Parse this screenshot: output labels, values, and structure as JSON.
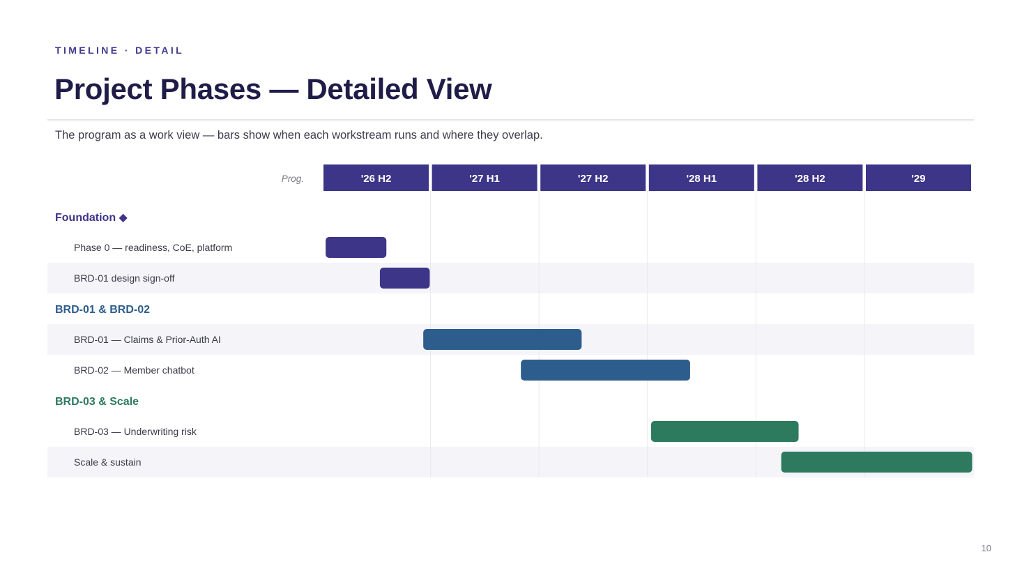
{
  "header": {
    "eyebrow": "TIMELINE · DETAIL",
    "title": "Project Phases — Detailed View",
    "subtitle": "The program as a work view — bars show when each workstream runs and where they overlap."
  },
  "page_number": "10",
  "chart_data": {
    "type": "gantt",
    "label_column_header": "Prog.",
    "periods": [
      "'26 H2",
      "'27 H1",
      "'27 H2",
      "'28 H1",
      "'28 H2",
      "'29"
    ],
    "colors": {
      "header_fill": "#3d3587",
      "foundation": "#3d3587",
      "brd0102": "#2d5d8c",
      "scale": "#2d7a5e",
      "stripe": "#f4f4f9",
      "grid": "#e8e8ef"
    },
    "rows": [
      {
        "kind": "group",
        "label": "Foundation",
        "marker": "◆",
        "color_key": "foundation"
      },
      {
        "kind": "task",
        "label": "Phase 0 — readiness, CoE, platform",
        "start": 0.02,
        "end": 0.58,
        "color_key": "foundation",
        "striped": false
      },
      {
        "kind": "task",
        "label": "BRD-01 design sign-off",
        "start": 0.52,
        "end": 0.98,
        "color_key": "foundation",
        "striped": true
      },
      {
        "kind": "group",
        "label": "BRD-01 & BRD-02",
        "marker": "",
        "color_key": "brd0102"
      },
      {
        "kind": "task",
        "label": "BRD-01 — Claims & Prior-Auth AI",
        "start": 0.92,
        "end": 2.38,
        "color_key": "brd0102",
        "striped": true
      },
      {
        "kind": "task",
        "label": "BRD-02 — Member chatbot",
        "start": 1.82,
        "end": 3.38,
        "color_key": "brd0102",
        "striped": false
      },
      {
        "kind": "group",
        "label": "BRD-03 & Scale",
        "marker": "",
        "color_key": "scale"
      },
      {
        "kind": "task",
        "label": "BRD-03 — Underwriting risk",
        "start": 3.02,
        "end": 4.38,
        "color_key": "scale",
        "striped": false
      },
      {
        "kind": "task",
        "label": "Scale & sustain",
        "start": 4.22,
        "end": 5.98,
        "color_key": "scale",
        "striped": true
      }
    ]
  }
}
